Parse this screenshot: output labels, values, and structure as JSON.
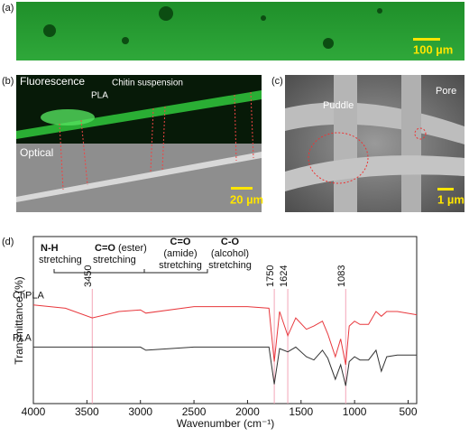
{
  "panels": {
    "a": {
      "label": "(a)",
      "scale_bar": "100 µm"
    },
    "b": {
      "label": "(b)",
      "fluorescence": "Fluorescence",
      "chitin": "Chitin suspension",
      "pla": "PLA",
      "optical": "Optical",
      "scale_bar": "20 µm"
    },
    "c": {
      "label": "(c)",
      "puddle": "Puddle",
      "pore": "Pore",
      "scale_bar": "1 µm"
    },
    "d": {
      "label": "(d)"
    }
  },
  "chart_data": {
    "type": "line",
    "xlabel": "Wavenumber (cm⁻¹)",
    "ylabel": "Transmittance (%)",
    "x": [
      4000,
      3700,
      3450,
      3200,
      3000,
      2950,
      2500,
      2000,
      1800,
      1750,
      1700,
      1624,
      1550,
      1450,
      1380,
      1300,
      1250,
      1180,
      1130,
      1083,
      1050,
      1000,
      950,
      870,
      800,
      750,
      700,
      600,
      420
    ],
    "series": [
      {
        "name": "ChPLA",
        "color": "#e8383d",
        "values": [
          61,
          59,
          53,
          57,
          58,
          56,
          60,
          60,
          59,
          26,
          57,
          42,
          53,
          46,
          48,
          51,
          43,
          29,
          40,
          24,
          48,
          51,
          49,
          49,
          57,
          54,
          57,
          57,
          55
        ]
      },
      {
        "name": "PLA",
        "color": "#333333",
        "values": [
          35,
          35,
          35,
          35,
          35,
          33,
          35,
          35,
          35,
          12,
          34,
          32,
          35,
          29,
          27,
          33,
          28,
          15,
          24,
          11,
          26,
          29,
          27,
          27,
          33,
          20,
          29,
          30,
          30
        ]
      }
    ],
    "xlim": [
      4000,
      420
    ],
    "ylim": [
      0,
      100
    ],
    "xticks": [
      4000,
      3500,
      3000,
      2500,
      2000,
      1500,
      1000,
      500
    ],
    "peak_lines": [
      3450,
      1750,
      1624,
      1083
    ],
    "band_notes": [
      {
        "bold": "N-H",
        "lines": [
          "stretching"
        ]
      },
      {
        "bold": "C=O",
        "extra": "(ester)",
        "lines": [
          "stretching"
        ]
      },
      {
        "bold": "C=O",
        "lines": [
          "(amide)",
          "stretching"
        ]
      },
      {
        "bold": "C-O",
        "lines": [
          "(alcohol)",
          "stretching"
        ]
      }
    ]
  }
}
